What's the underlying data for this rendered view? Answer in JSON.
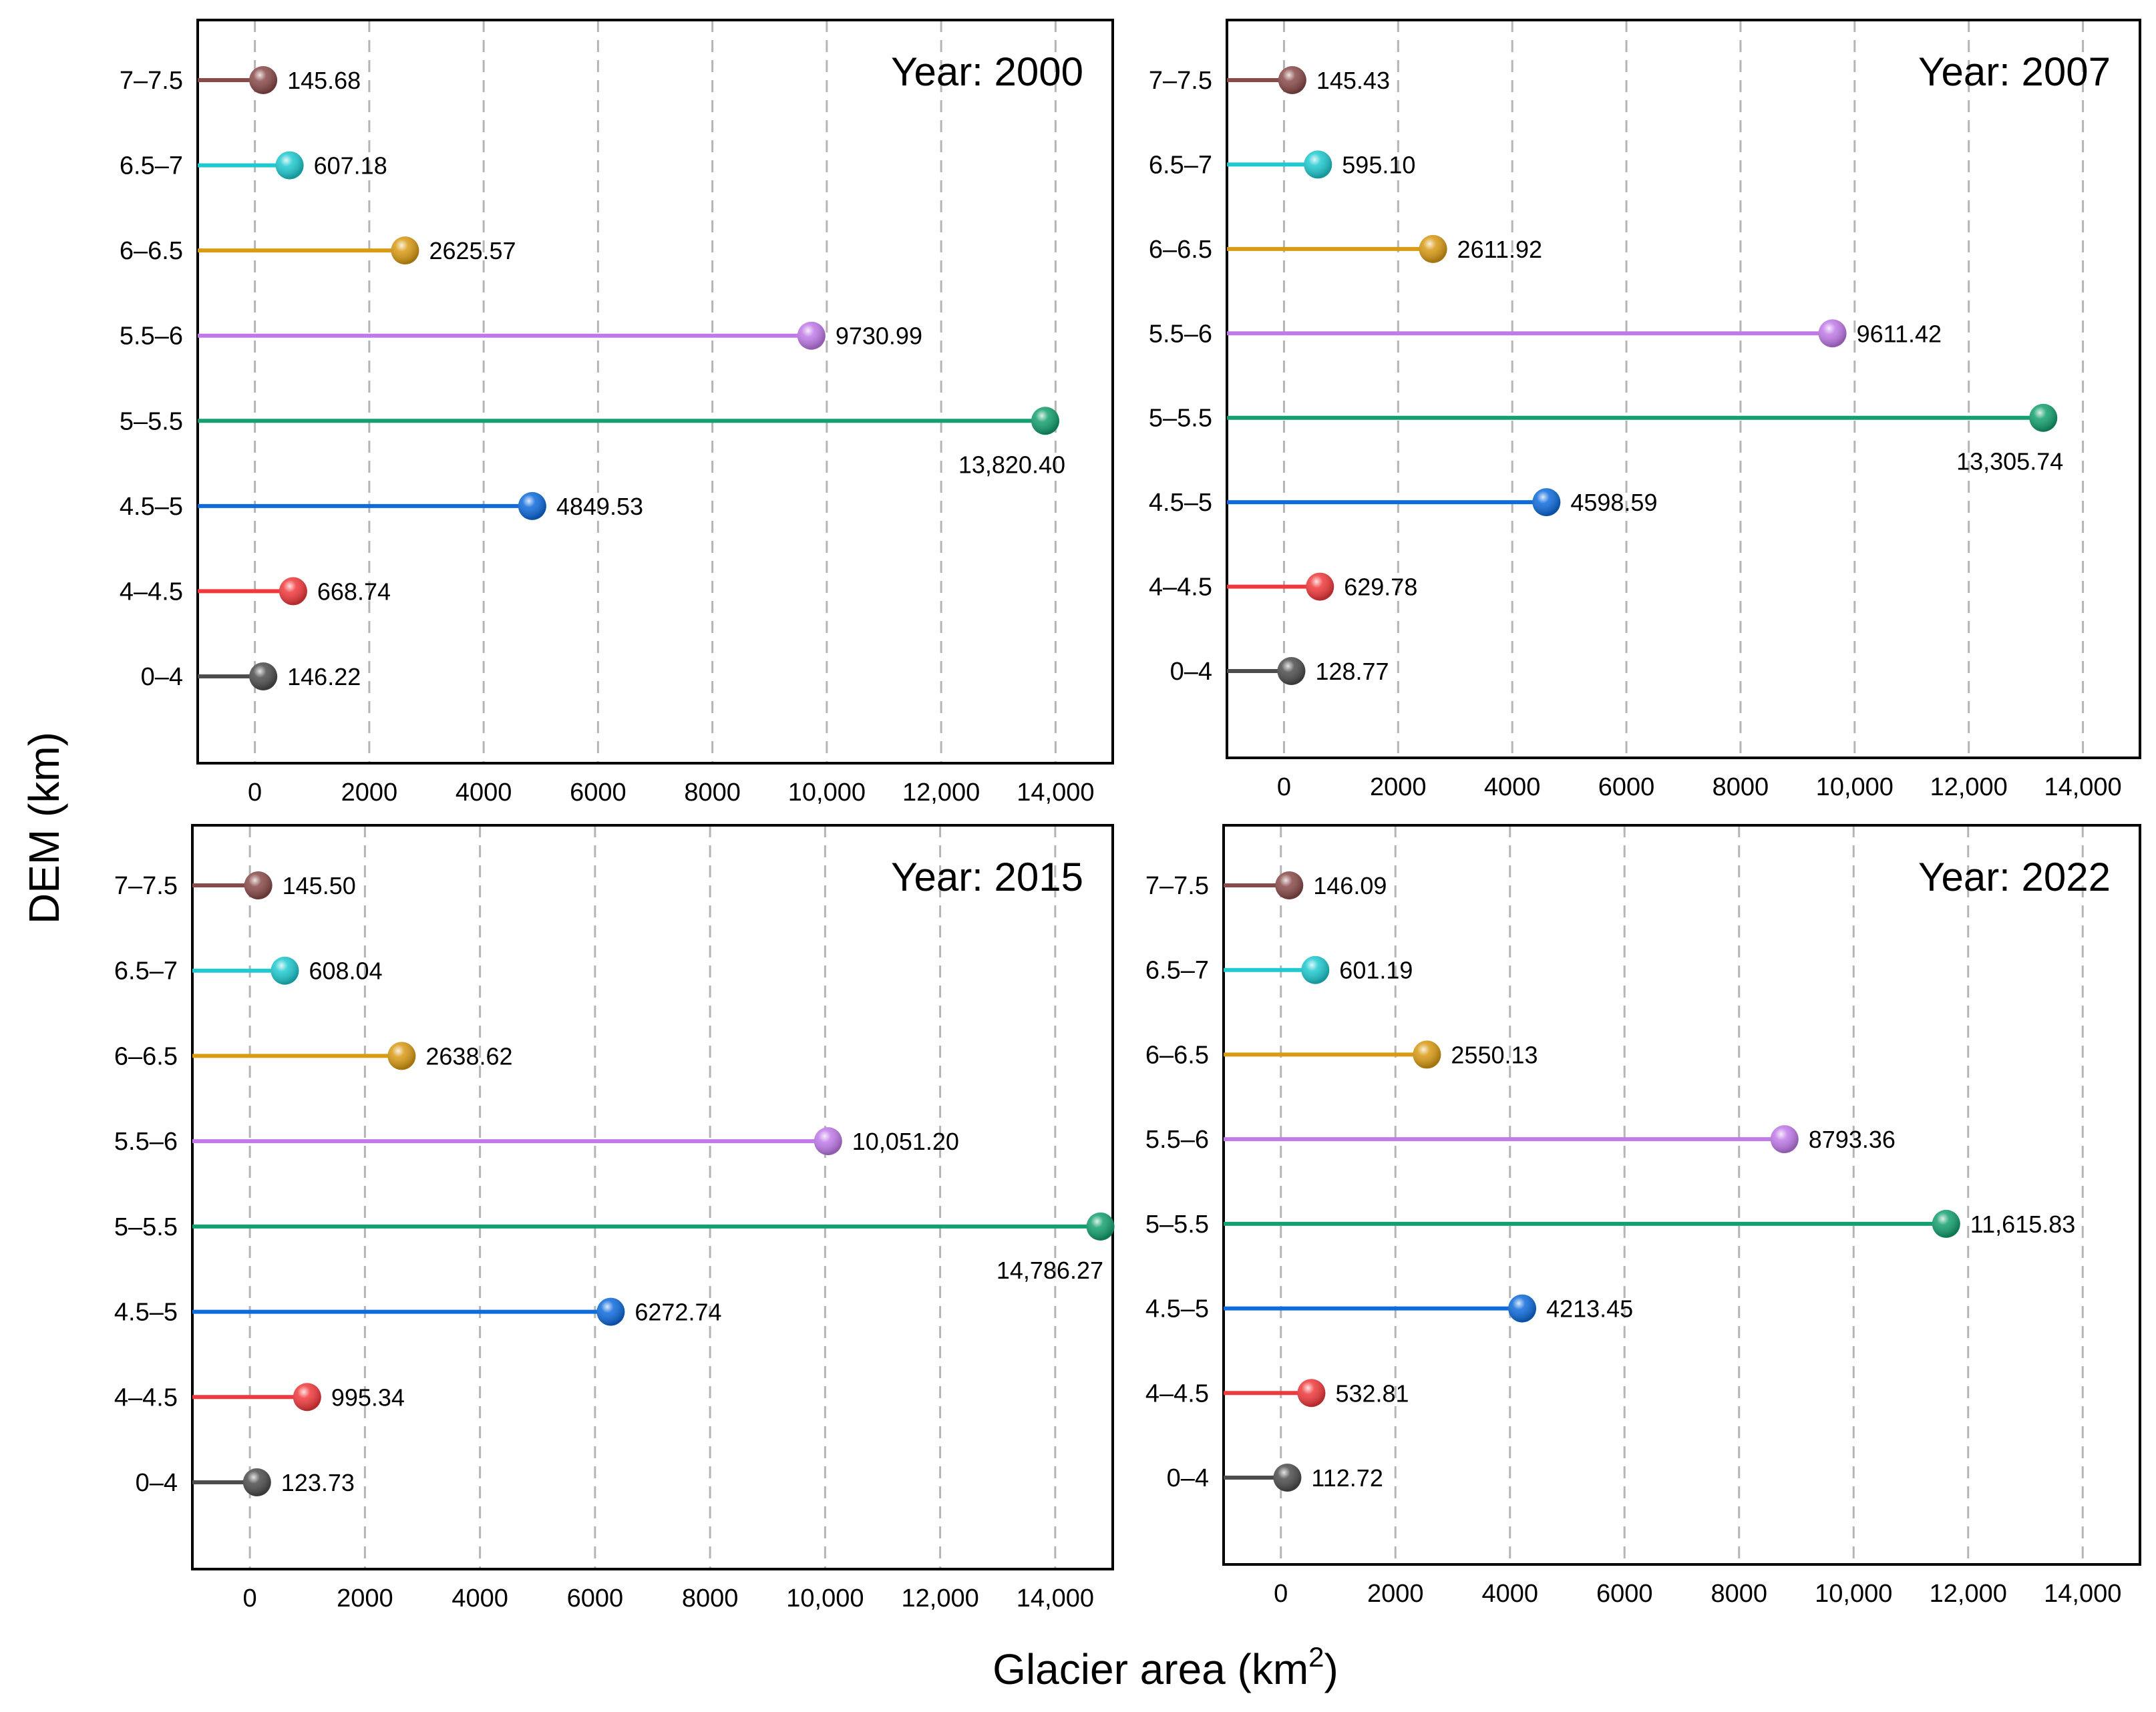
{
  "figure": {
    "xlabel": "Glacier area  (km",
    "xlabel_sup": "2",
    "xlabel_end": ")",
    "ylabel": "DEM  (km)"
  },
  "chart_data": [
    {
      "type": "lollipop",
      "title": "Year: 2000",
      "orientation": "horizontal",
      "categories": [
        "0–4",
        "4–4.5",
        "4.5–5",
        "5–5.5",
        "5.5–6",
        "6–6.5",
        "6.5–7",
        "7–7.5"
      ],
      "values": [
        146.22,
        668.74,
        4849.53,
        13820.4,
        9730.99,
        2625.57,
        607.18,
        145.68
      ],
      "labels": [
        "146.22",
        "668.74",
        "4849.53",
        "13,820.40",
        "9730.99",
        "2625.57",
        "607.18",
        "145.68"
      ],
      "xlim": [
        -1000,
        15000
      ],
      "xticks": [
        0,
        2000,
        4000,
        6000,
        8000,
        10000,
        12000,
        14000
      ],
      "xtick_labels": [
        "0",
        "2000",
        "4000",
        "6000",
        "8000",
        "10,000",
        "12,000",
        "14,000"
      ],
      "xlabel": "Glacier area (km2)",
      "ylabel": "DEM (km)",
      "grid": "vertical dashed"
    },
    {
      "type": "lollipop",
      "title": "Year: 2007",
      "orientation": "horizontal",
      "categories": [
        "0–4",
        "4–4.5",
        "4.5–5",
        "5–5.5",
        "5.5–6",
        "6–6.5",
        "6.5–7",
        "7–7.5"
      ],
      "values": [
        128.77,
        629.78,
        4598.59,
        13305.74,
        9611.42,
        2611.92,
        595.1,
        145.43
      ],
      "labels": [
        "128.77",
        "629.78",
        "4598.59",
        "13,305.74",
        "9611.42",
        "2611.92",
        "595.10",
        "145.43"
      ],
      "xlim": [
        -1000,
        15000
      ],
      "xticks": [
        0,
        2000,
        4000,
        6000,
        8000,
        10000,
        12000,
        14000
      ],
      "xtick_labels": [
        "0",
        "2000",
        "4000",
        "6000",
        "8000",
        "10,000",
        "12,000",
        "14,000"
      ],
      "xlabel": "Glacier area (km2)",
      "ylabel": "DEM (km)",
      "grid": "vertical dashed"
    },
    {
      "type": "lollipop",
      "title": "Year: 2015",
      "orientation": "horizontal",
      "categories": [
        "0–4",
        "4–4.5",
        "4.5–5",
        "5–5.5",
        "5.5–6",
        "6–6.5",
        "6.5–7",
        "7–7.5"
      ],
      "values": [
        123.73,
        995.34,
        6272.74,
        14786.27,
        10051.2,
        2638.62,
        608.04,
        145.5
      ],
      "labels": [
        "123.73",
        "995.34",
        "6272.74",
        "14,786.27",
        "10,051.20",
        "2638.62",
        "608.04",
        "145.50"
      ],
      "xlim": [
        -1000,
        15000
      ],
      "xticks": [
        0,
        2000,
        4000,
        6000,
        8000,
        10000,
        12000,
        14000
      ],
      "xtick_labels": [
        "0",
        "2000",
        "4000",
        "6000",
        "8000",
        "10,000",
        "12,000",
        "14,000"
      ],
      "xlabel": "Glacier area (km2)",
      "ylabel": "DEM (km)",
      "grid": "vertical dashed"
    },
    {
      "type": "lollipop",
      "title": "Year: 2022",
      "orientation": "horizontal",
      "categories": [
        "0–4",
        "4–4.5",
        "4.5–5",
        "5–5.5",
        "5.5–6",
        "6–6.5",
        "6.5–7",
        "7–7.5"
      ],
      "values": [
        112.72,
        532.81,
        4213.45,
        11615.83,
        8793.36,
        2550.13,
        601.19,
        146.09
      ],
      "labels": [
        "112.72",
        "532.81",
        "4213.45",
        "11,615.83",
        "8793.36",
        "2550.13",
        "601.19",
        "146.09"
      ],
      "xlim": [
        -1000,
        15000
      ],
      "xticks": [
        0,
        2000,
        4000,
        6000,
        8000,
        10000,
        12000,
        14000
      ],
      "xtick_labels": [
        "0",
        "2000",
        "4000",
        "6000",
        "8000",
        "10,000",
        "12,000",
        "14,000"
      ],
      "xlabel": "Glacier area (km2)",
      "ylabel": "DEM (km)",
      "grid": "vertical dashed"
    }
  ],
  "colors": {
    "series": [
      "#4d4d4d",
      "#f0393c",
      "#0e6bdc",
      "#14a06e",
      "#c07ae8",
      "#d99a14",
      "#1ec9cf",
      "#8a4a4a"
    ],
    "grid": "#b5b5b5",
    "frame": "#000000"
  }
}
